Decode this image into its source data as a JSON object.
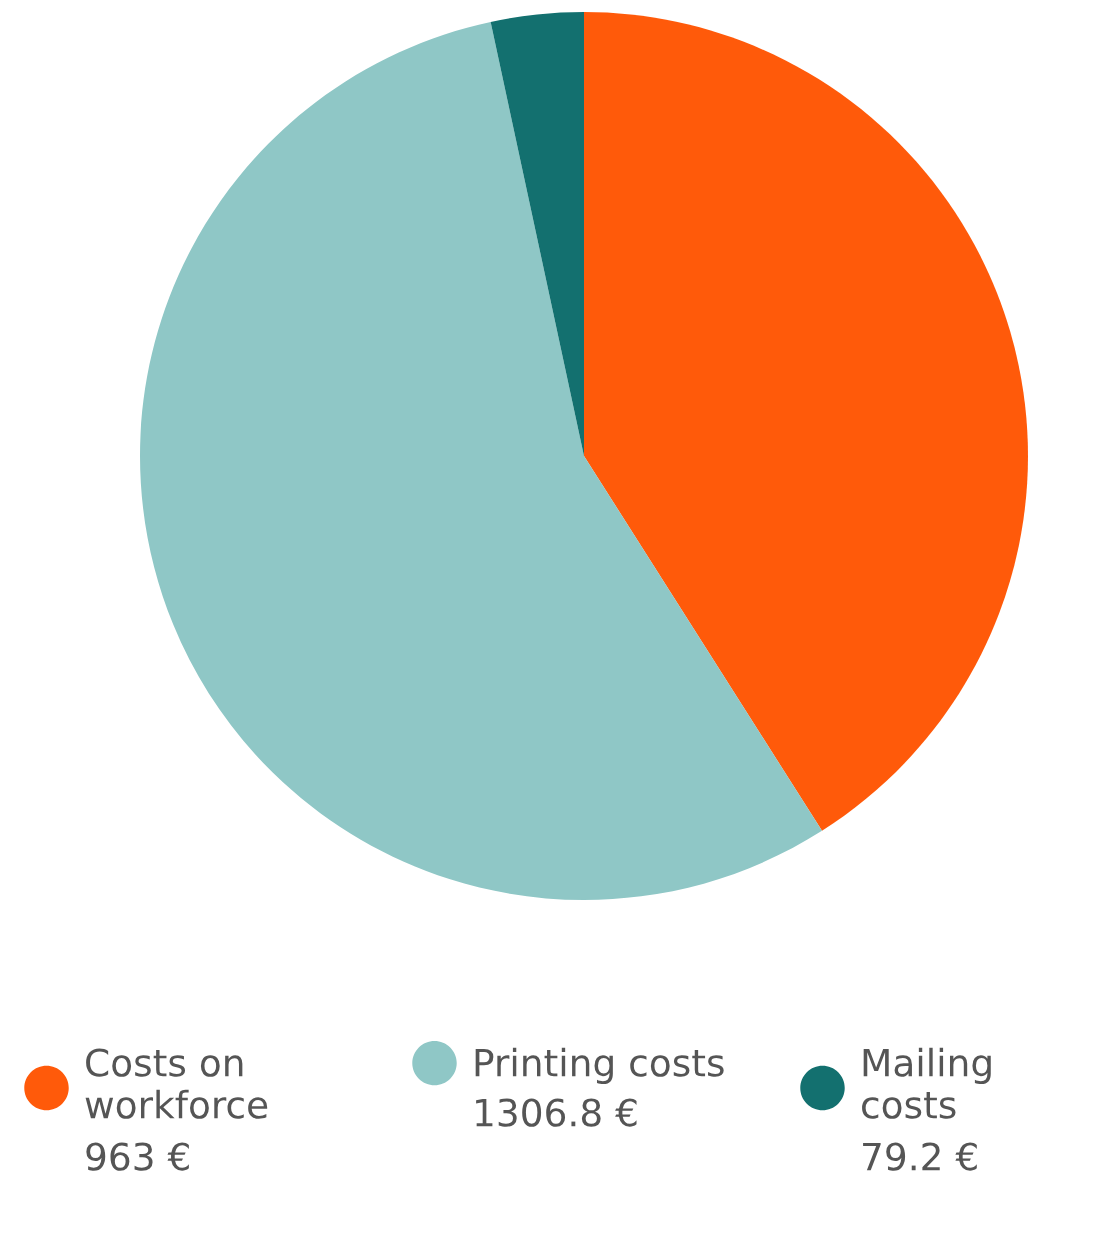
{
  "chart_data": {
    "type": "pie",
    "categories": [
      "Costs on workforce",
      "Printing costs",
      "Mailing costs"
    ],
    "values": [
      963,
      1306.8,
      79.2
    ],
    "colors": [
      "#ff5a0a",
      "#8fc7c6",
      "#13706f"
    ],
    "value_labels": [
      "963 €",
      "1306.8 €",
      "79.2 €"
    ],
    "legend": "bottom"
  }
}
